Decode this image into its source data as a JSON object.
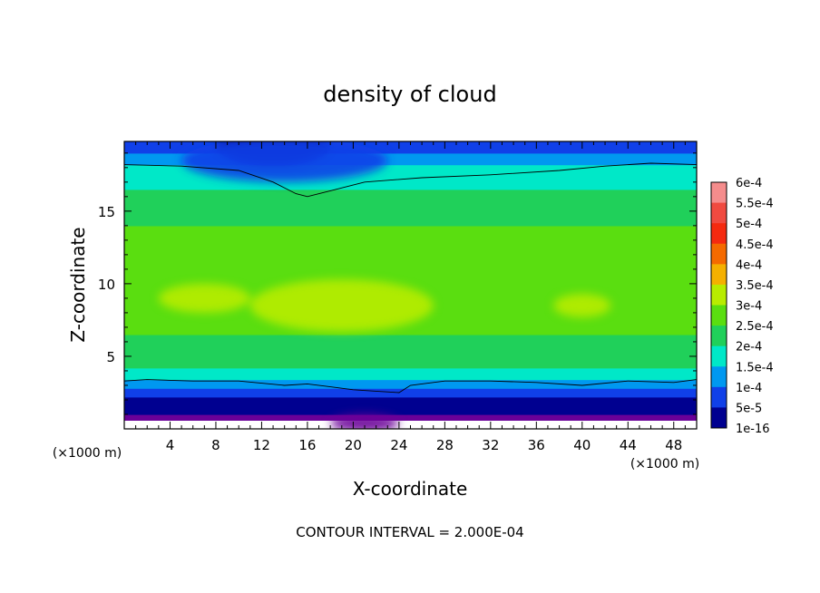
{
  "chart_data": {
    "type": "heatmap",
    "title": "density of cloud",
    "xlabel": "X-coordinate",
    "ylabel": "Z-coordinate",
    "x_unit_left": "(×1000 m)",
    "x_unit_right": "(×1000 m)",
    "xlim": [
      0,
      50
    ],
    "ylim": [
      0,
      19.8
    ],
    "x_ticks": [
      4,
      8,
      12,
      16,
      20,
      24,
      28,
      32,
      36,
      40,
      44,
      48
    ],
    "x_tick_labels": [
      "4",
      "8",
      "12",
      "16",
      "20",
      "24",
      "28",
      "32",
      "36",
      "40",
      "44",
      "48"
    ],
    "y_ticks": [
      5,
      10,
      15
    ],
    "y_tick_labels": [
      "5",
      "10",
      "15"
    ],
    "contour_interval_text": "CONTOUR INTERVAL = 2.000E-04",
    "colorbar": {
      "labels": [
        "6e-4",
        "5.5e-4",
        "5e-4",
        "4.5e-4",
        "4e-4",
        "3.5e-4",
        "3e-4",
        "2.5e-4",
        "2e-4",
        "1.5e-4",
        "1e-4",
        "5e-5",
        "1e-16"
      ],
      "levels": [
        0.0006,
        0.00055,
        0.0005,
        0.00045,
        0.0004,
        0.00035,
        0.0003,
        0.00025,
        0.0002,
        0.00015,
        0.0001,
        5e-05,
        1e-16
      ],
      "colors": [
        "#f58c8c",
        "#f04a40",
        "#f52a10",
        "#f56a00",
        "#f5b000",
        "#b8ec00",
        "#5ade10",
        "#20d05a",
        "#00e8c8",
        "#0098f0",
        "#1040e8",
        "#000090",
        "#6a0098"
      ]
    },
    "profile_z": [
      0,
      0.6,
      1.0,
      1.6,
      2.2,
      2.8,
      3.4,
      4.2,
      5.0,
      6.5,
      8.0,
      9.5,
      11.0,
      12.5,
      14.0,
      15.5,
      16.5,
      17.5,
      18.2,
      19.0,
      19.8
    ],
    "profile_density": [
      0,
      1e-16,
      5e-05,
      9e-05,
      0.00013,
      0.00017,
      0.0002,
      0.00025,
      0.00028,
      0.00031,
      0.00034,
      0.00033,
      0.00031,
      0.0003,
      0.00028,
      0.00026,
      0.00024,
      0.00021,
      0.00019,
      0.00013,
      9e-05
    ],
    "contour_2e-4_upper_x": [
      0,
      5,
      10,
      13,
      15,
      16,
      18,
      21,
      26,
      32,
      38,
      42,
      46,
      50
    ],
    "contour_2e-4_upper_z": [
      18.2,
      18.1,
      17.8,
      17.0,
      16.2,
      16.0,
      16.4,
      17.0,
      17.3,
      17.5,
      17.8,
      18.1,
      18.3,
      18.2
    ],
    "contour_2e-4_lower_x": [
      0,
      2,
      6,
      10,
      14,
      16,
      18,
      20,
      22,
      24,
      25,
      28,
      32,
      36,
      40,
      44,
      48,
      50
    ],
    "contour_2e-4_lower_z": [
      3.3,
      3.4,
      3.3,
      3.3,
      3.0,
      3.1,
      2.9,
      2.7,
      2.6,
      2.5,
      3.0,
      3.3,
      3.3,
      3.2,
      3.0,
      3.3,
      3.2,
      3.4
    ]
  }
}
